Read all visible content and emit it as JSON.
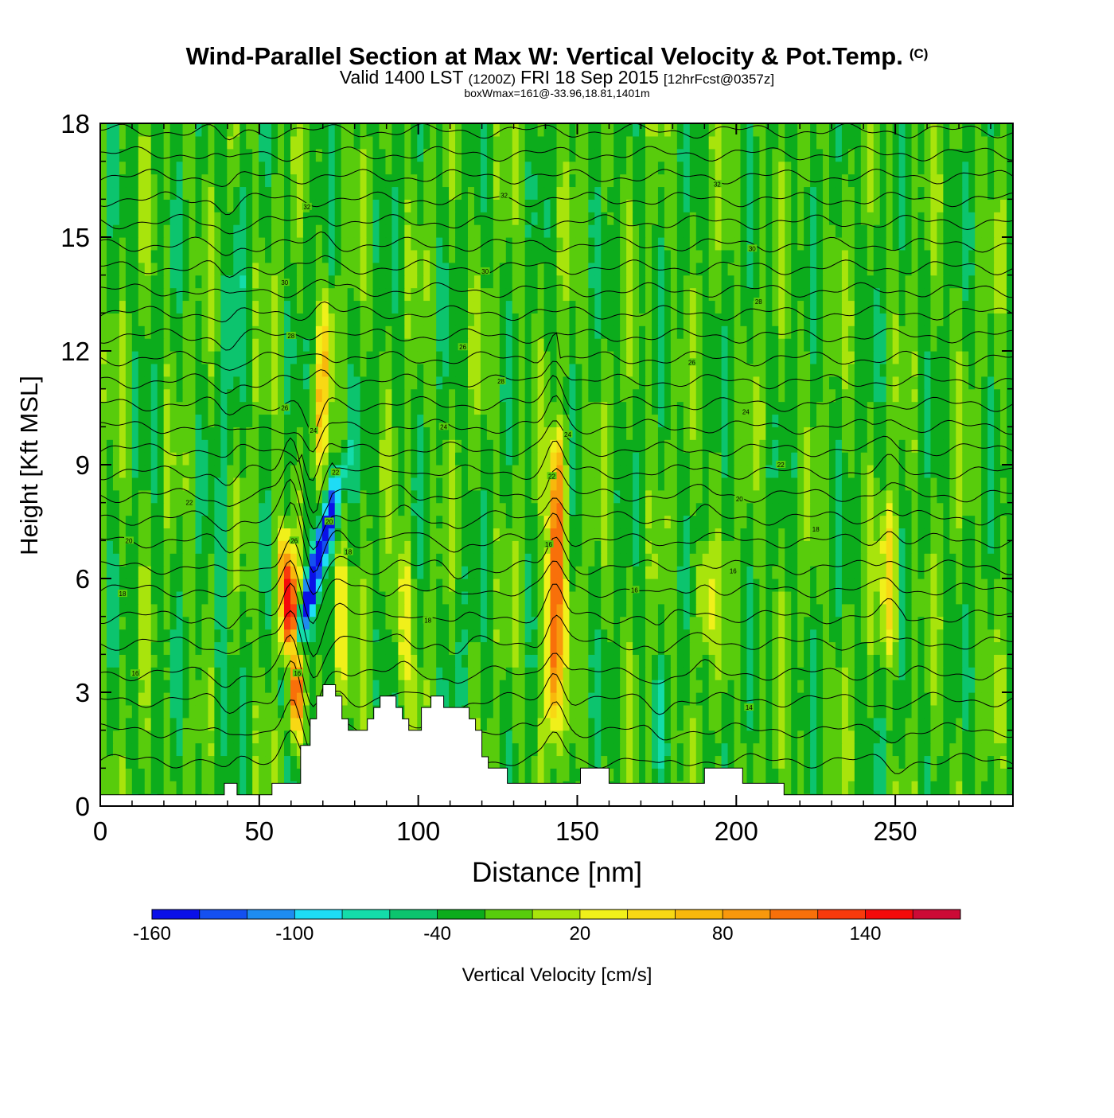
{
  "chart_data": {
    "type": "heatmap",
    "title": "Wind-Parallel Section at Max W: Vertical Velocity & Pot.Temp.",
    "title_mark": "(C)",
    "subtitle": {
      "prefix": "Valid 1400 LST",
      "utc": "(1200Z)",
      "date": "FRI 18 Sep 2015",
      "forecast": "[12hrFcst@0357z]"
    },
    "box_info": "boxWmax=161@-33.96,18.81,1401m",
    "xlabel": "Distance [nm]",
    "ylabel": "Height [Kft MSL]",
    "xlim": [
      0,
      287
    ],
    "ylim": [
      0,
      18
    ],
    "xticks": [
      0,
      50,
      100,
      150,
      200,
      250
    ],
    "yticks": [
      0,
      3,
      6,
      9,
      12,
      15,
      18
    ],
    "background_value": -20,
    "colorbar": {
      "label": "Vertical Velocity [cm/s]",
      "tick_labels": [
        "-160",
        "-100",
        "-40",
        "20",
        "80",
        "140"
      ],
      "tick_values": [
        -160,
        -100,
        -40,
        20,
        80,
        140
      ],
      "range": [
        -160,
        180
      ],
      "step": 20,
      "colors": [
        "#0a10e8",
        "#1450f0",
        "#1e8cf0",
        "#1edcf5",
        "#14dcaa",
        "#0cc46e",
        "#0cac1c",
        "#58cc0c",
        "#a8e40c",
        "#f0f01a",
        "#f8d814",
        "#f8b80c",
        "#f8980c",
        "#f8700a",
        "#f83a0c",
        "#f40a0a",
        "#cc0a36"
      ]
    },
    "features": [
      {
        "name": "downdraft",
        "x": 67,
        "ybottom": 3,
        "ytop": 9,
        "w": -160,
        "lean": 9
      },
      {
        "name": "updraft",
        "x": 60,
        "ybottom": 2,
        "ytop": 7,
        "w": 160,
        "lean": -2
      },
      {
        "name": "updraft",
        "x": 143,
        "ybottom": 2,
        "ytop": 9.8,
        "w": 130,
        "lean": 1
      },
      {
        "name": "updraft",
        "x": 248,
        "ybottom": 4,
        "ytop": 8,
        "w": 50,
        "lean": 0
      },
      {
        "name": "updraft",
        "x": 75,
        "ybottom": 3,
        "ytop": 6.8,
        "w": 40,
        "lean": 0
      },
      {
        "name": "updraft",
        "x": 70,
        "ybottom": 9,
        "ytop": 13.5,
        "w": 40,
        "lean": 2
      },
      {
        "name": "updraft",
        "x": 95,
        "ybottom": 3,
        "ytop": 7,
        "w": 30,
        "lean": 0
      },
      {
        "name": "updraft",
        "x": 190,
        "ybottom": 4,
        "ytop": 7,
        "w": 30,
        "lean": 0
      },
      {
        "name": "downdraft",
        "x": 40,
        "ybottom": 1,
        "ytop": 17,
        "w": -45,
        "lean": 4
      },
      {
        "name": "downdraft",
        "x": 112,
        "ybottom": 1,
        "ytop": 6,
        "w": -40,
        "lean": 0
      },
      {
        "name": "downdraft",
        "x": 176,
        "ybottom": 1,
        "ytop": 4,
        "w": -40,
        "lean": 0
      },
      {
        "name": "downdraft",
        "x": 250,
        "ybottom": 1,
        "ytop": 3,
        "w": -40,
        "lean": 0
      }
    ],
    "terrain": [
      [
        0,
        0.3
      ],
      [
        39,
        0.3
      ],
      [
        39,
        0.6
      ],
      [
        43,
        0.6
      ],
      [
        43,
        0.3
      ],
      [
        54,
        0.3
      ],
      [
        54,
        0.6
      ],
      [
        60,
        0.6
      ],
      [
        60,
        0.6
      ],
      [
        63,
        0.6
      ],
      [
        63,
        1.6
      ],
      [
        66,
        1.6
      ],
      [
        66,
        2.3
      ],
      [
        68,
        2.3
      ],
      [
        68,
        2.9
      ],
      [
        70,
        2.9
      ],
      [
        70,
        3.2
      ],
      [
        74,
        3.2
      ],
      [
        74,
        2.9
      ],
      [
        76,
        2.9
      ],
      [
        76,
        2.3
      ],
      [
        78,
        2.3
      ],
      [
        78,
        2.0
      ],
      [
        84,
        2.0
      ],
      [
        84,
        2.3
      ],
      [
        86,
        2.3
      ],
      [
        86,
        2.6
      ],
      [
        88,
        2.6
      ],
      [
        88,
        2.9
      ],
      [
        93,
        2.9
      ],
      [
        93,
        2.6
      ],
      [
        95,
        2.6
      ],
      [
        95,
        2.3
      ],
      [
        97,
        2.3
      ],
      [
        97,
        2.0
      ],
      [
        101,
        2.0
      ],
      [
        101,
        2.6
      ],
      [
        104,
        2.6
      ],
      [
        104,
        2.9
      ],
      [
        108,
        2.9
      ],
      [
        108,
        2.6
      ],
      [
        116,
        2.6
      ],
      [
        116,
        2.3
      ],
      [
        118,
        2.3
      ],
      [
        118,
        2.0
      ],
      [
        120,
        2.0
      ],
      [
        120,
        1.3
      ],
      [
        122,
        1.3
      ],
      [
        122,
        1.0
      ],
      [
        128,
        1.0
      ],
      [
        128,
        0.6
      ],
      [
        151,
        0.6
      ],
      [
        151,
        1.0
      ],
      [
        160,
        1.0
      ],
      [
        160,
        0.6
      ],
      [
        190,
        0.6
      ],
      [
        190,
        1.0
      ],
      [
        202,
        1.0
      ],
      [
        202,
        0.6
      ],
      [
        215,
        0.6
      ],
      [
        215,
        0.3
      ],
      [
        287,
        0.3
      ]
    ],
    "isentropes": {
      "levels_ft": [
        1.2,
        2.0,
        2.8,
        3.5,
        4.3,
        5.0,
        5.7,
        6.3,
        7.0,
        7.6,
        8.2,
        8.8,
        9.4,
        10.0,
        10.6,
        11.2,
        11.8,
        12.4,
        13.0,
        13.6,
        14.2,
        14.8,
        15.4,
        16.0,
        16.6,
        17.2,
        17.8
      ],
      "labels": [
        {
          "text": "16",
          "x": 11,
          "y": 3.5
        },
        {
          "text": "18",
          "x": 7,
          "y": 5.6
        },
        {
          "text": "20",
          "x": 9,
          "y": 7.0
        },
        {
          "text": "22",
          "x": 28,
          "y": 8.0
        },
        {
          "text": "26",
          "x": 61,
          "y": 7.0
        },
        {
          "text": "16",
          "x": 62,
          "y": 3.5
        },
        {
          "text": "20",
          "x": 72,
          "y": 7.5
        },
        {
          "text": "18",
          "x": 78,
          "y": 6.7
        },
        {
          "text": "22",
          "x": 74,
          "y": 8.8
        },
        {
          "text": "24",
          "x": 67,
          "y": 9.9
        },
        {
          "text": "26",
          "x": 58,
          "y": 10.5
        },
        {
          "text": "28",
          "x": 60,
          "y": 12.4
        },
        {
          "text": "30",
          "x": 58,
          "y": 13.8
        },
        {
          "text": "32",
          "x": 65,
          "y": 15.8
        },
        {
          "text": "18",
          "x": 103,
          "y": 4.9
        },
        {
          "text": "24",
          "x": 108,
          "y": 10.0
        },
        {
          "text": "28",
          "x": 126,
          "y": 11.2
        },
        {
          "text": "26",
          "x": 114,
          "y": 12.1
        },
        {
          "text": "30",
          "x": 121,
          "y": 14.1
        },
        {
          "text": "32",
          "x": 127,
          "y": 16.1
        },
        {
          "text": "16",
          "x": 141,
          "y": 6.9
        },
        {
          "text": "22",
          "x": 142,
          "y": 8.7
        },
        {
          "text": "24",
          "x": 147,
          "y": 9.8
        },
        {
          "text": "16",
          "x": 168,
          "y": 5.7
        },
        {
          "text": "16",
          "x": 199,
          "y": 6.2
        },
        {
          "text": "20",
          "x": 201,
          "y": 8.1
        },
        {
          "text": "22",
          "x": 214,
          "y": 9.0
        },
        {
          "text": "18",
          "x": 225,
          "y": 7.3
        },
        {
          "text": "14",
          "x": 204,
          "y": 2.6
        },
        {
          "text": "24",
          "x": 203,
          "y": 10.4
        },
        {
          "text": "26",
          "x": 186,
          "y": 11.7
        },
        {
          "text": "28",
          "x": 207,
          "y": 13.3
        },
        {
          "text": "30",
          "x": 205,
          "y": 14.7
        },
        {
          "text": "32",
          "x": 194,
          "y": 16.4
        }
      ]
    }
  }
}
